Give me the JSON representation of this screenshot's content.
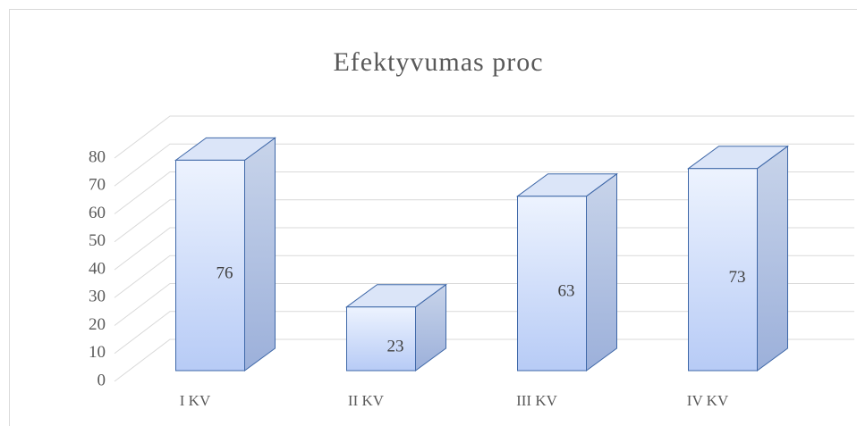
{
  "chart_data": {
    "type": "bar3d",
    "title": "Efektyvumas proc",
    "categories": [
      "I KV",
      "II KV",
      "III KV",
      "IV KV"
    ],
    "values": [
      76,
      23,
      63,
      73
    ],
    "color": "#c9d8f7",
    "ylim": [
      0,
      80
    ],
    "yticks": [
      0,
      10,
      20,
      30,
      40,
      50,
      60,
      70,
      80
    ],
    "grid": true
  }
}
